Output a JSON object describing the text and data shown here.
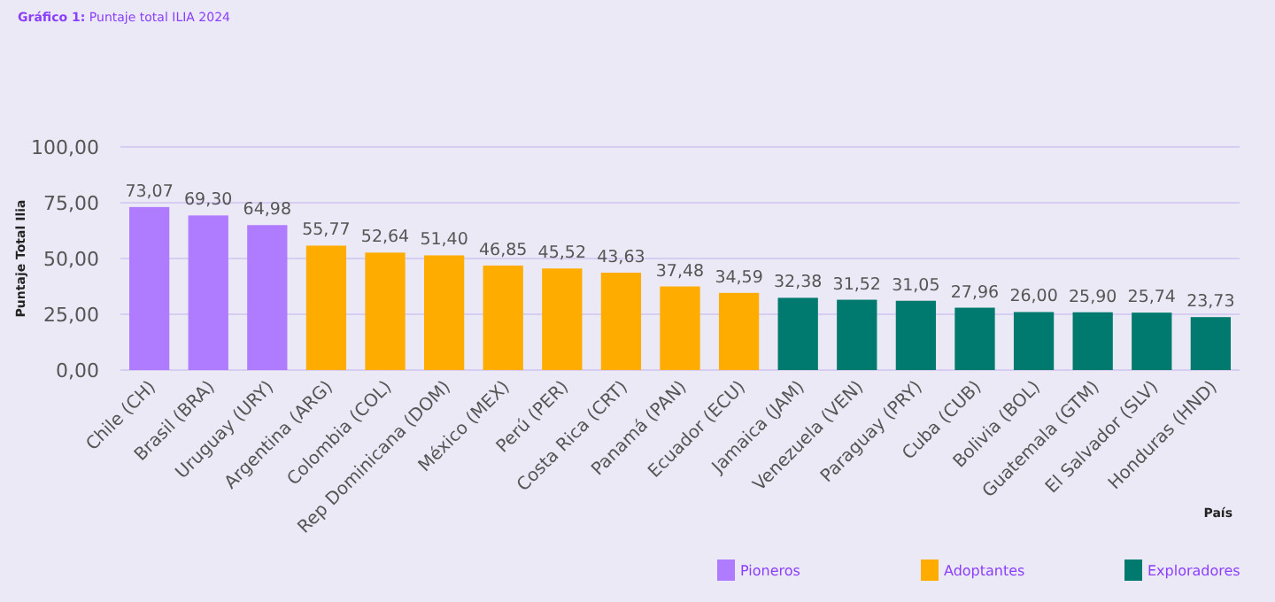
{
  "chart_data": {
    "type": "bar",
    "title": "Gráfico 1:",
    "subtitle": "Puntaje total ILIA 2024",
    "xlabel": "País",
    "ylabel": "Puntaje Total Ilia",
    "categories": [
      "Chile (CH)",
      "Brasil (BRA)",
      "Uruguay (URY)",
      "Argentina (ARG)",
      "Colombia (COL)",
      "Rep Dominicana (DOM)",
      "México (MEX)",
      "Perú (PER)",
      "Costa Rica (CRT)",
      "Panamá (PAN)",
      "Ecuador (ECU)",
      "Jamaica (JAM)",
      "Venezuela (VEN)",
      "Paraguay (PRY)",
      "Cuba (CUB)",
      "Bolivia (BOL)",
      "Guatemala (GTM)",
      "El Salvador (SLV)",
      "Honduras (HND)"
    ],
    "series": [
      {
        "name": "Pioneros",
        "color": "#b07cff",
        "values": [
          73.07,
          69.3,
          64.98,
          null,
          null,
          null,
          null,
          null,
          null,
          null,
          null,
          null,
          null,
          null,
          null,
          null,
          null,
          null,
          null
        ],
        "value_labels": [
          "73,07",
          "69,30",
          "64,98",
          null,
          null,
          null,
          null,
          null,
          null,
          null,
          null,
          null,
          null,
          null,
          null,
          null,
          null,
          null,
          null
        ]
      },
      {
        "name": "Adoptantes",
        "color": "#ffac00",
        "values": [
          null,
          null,
          null,
          55.77,
          52.64,
          51.4,
          46.85,
          45.52,
          43.63,
          37.48,
          34.59,
          null,
          null,
          null,
          null,
          null,
          null,
          null,
          null
        ],
        "value_labels": [
          null,
          null,
          null,
          "55,77",
          "52,64",
          "51,40",
          "46,85",
          "45,52",
          "43,63",
          "37,48",
          "34,59",
          null,
          null,
          null,
          null,
          null,
          null,
          null,
          null
        ]
      },
      {
        "name": "Exploradores",
        "color": "#007a6e",
        "values": [
          null,
          null,
          null,
          null,
          null,
          null,
          null,
          null,
          null,
          null,
          null,
          32.38,
          31.52,
          31.05,
          27.96,
          26.0,
          25.9,
          25.74,
          23.73
        ],
        "value_labels": [
          null,
          null,
          null,
          null,
          null,
          null,
          null,
          null,
          null,
          null,
          null,
          "32,38",
          "31,52",
          "31,05",
          "27,96",
          "26,00",
          "25,90",
          "25,74",
          "23,73"
        ]
      }
    ],
    "ylim": [
      0,
      100
    ],
    "yticks": [
      {
        "value": 0,
        "label": "0,00"
      },
      {
        "value": 25,
        "label": "25,00"
      },
      {
        "value": 50,
        "label": "50,00"
      },
      {
        "value": 75,
        "label": "75,00"
      },
      {
        "value": 100,
        "label": "100,00"
      }
    ],
    "grid": "y",
    "legend": "bottom right"
  }
}
